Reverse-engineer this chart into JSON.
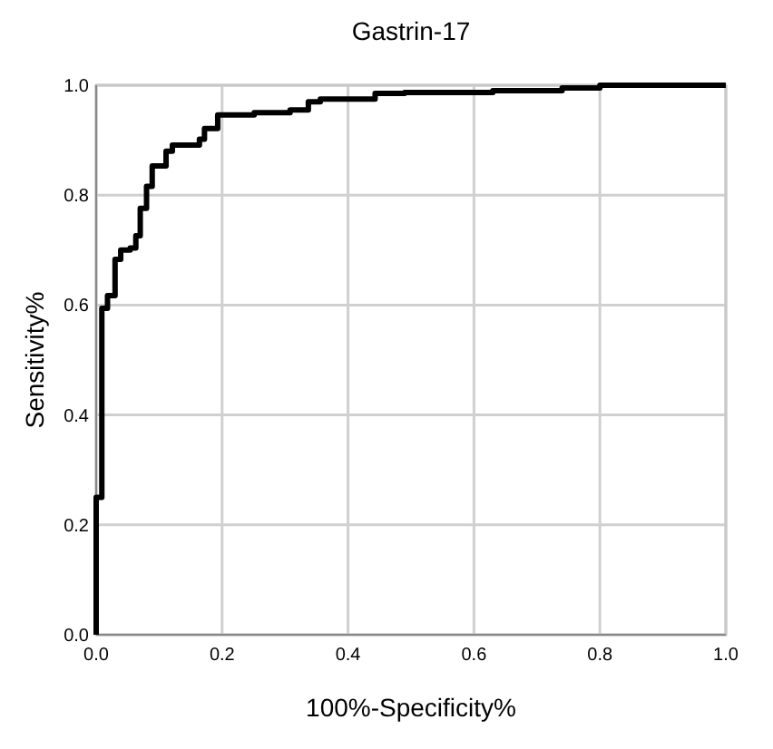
{
  "chart_data": {
    "type": "step",
    "title": "Gastrin-17",
    "xlabel": "100%-Specificity%",
    "ylabel": "Sensitivity%",
    "x": [
      0,
      0,
      0.009,
      0.018,
      0.03,
      0.039,
      0.054,
      0.063,
      0.07,
      0.08,
      0.089,
      0.111,
      0.121,
      0.164,
      0.172,
      0.193,
      0.251,
      0.308,
      0.337,
      0.356,
      0.443,
      0.49,
      0.63,
      0.74,
      0.8,
      1.0
    ],
    "series": [
      {
        "color": "#000000",
        "values": [
          0,
          0.25,
          0.594,
          0.617,
          0.683,
          0.7,
          0.704,
          0.726,
          0.776,
          0.816,
          0.853,
          0.88,
          0.891,
          0.902,
          0.921,
          0.946,
          0.95,
          0.955,
          0.97,
          0.975,
          0.985,
          0.987,
          0.99,
          0.995,
          1.0,
          1.0
        ]
      }
    ],
    "xlim": [
      0,
      1
    ],
    "ylim": [
      0,
      1
    ],
    "xticks": [
      {
        "value": 0,
        "label": "0.0"
      },
      {
        "value": 0.2,
        "label": "0.2"
      },
      {
        "value": 0.4,
        "label": "0.4"
      },
      {
        "value": 0.6,
        "label": "0.6"
      },
      {
        "value": 0.8,
        "label": "0.8"
      },
      {
        "value": 1,
        "label": "1.0"
      }
    ],
    "yticks": [
      {
        "value": 0,
        "label": "0.0"
      },
      {
        "value": 0.2,
        "label": "0.2"
      },
      {
        "value": 0.4,
        "label": "0.4"
      },
      {
        "value": 0.6,
        "label": "0.6"
      },
      {
        "value": 0.8,
        "label": "0.8"
      },
      {
        "value": 1,
        "label": "1.0"
      }
    ],
    "grid": true,
    "marker": "none",
    "line_style": "solid"
  }
}
